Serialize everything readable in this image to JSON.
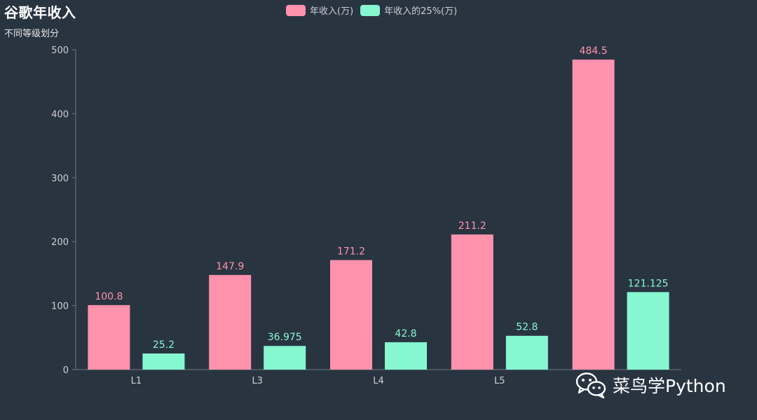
{
  "chart_data": {
    "type": "bar",
    "title": "谷歌年收入",
    "subtitle": "不同等级划分",
    "categories": [
      "L1",
      "L3",
      "L4",
      "L5",
      ""
    ],
    "series": [
      {
        "name": "年收入(万)",
        "values": [
          100.8,
          147.9,
          171.2,
          211.2,
          484.5
        ],
        "color": "#ff92ac"
      },
      {
        "name": "年收入的25%(万)",
        "values": [
          25.2,
          36.975,
          42.8,
          52.8,
          121.125
        ],
        "color": "#86f7d1"
      }
    ],
    "ylim": [
      0,
      500
    ],
    "yticks": [
      0,
      100,
      200,
      300,
      400,
      500
    ],
    "grid": false,
    "legend_position": "top-center"
  },
  "watermark": {
    "text": "菜鸟学Python",
    "icon": "wechat-icon"
  },
  "colors": {
    "background": "#293441",
    "axis": "#6e7885",
    "tick_label": "#cfcfcf"
  }
}
